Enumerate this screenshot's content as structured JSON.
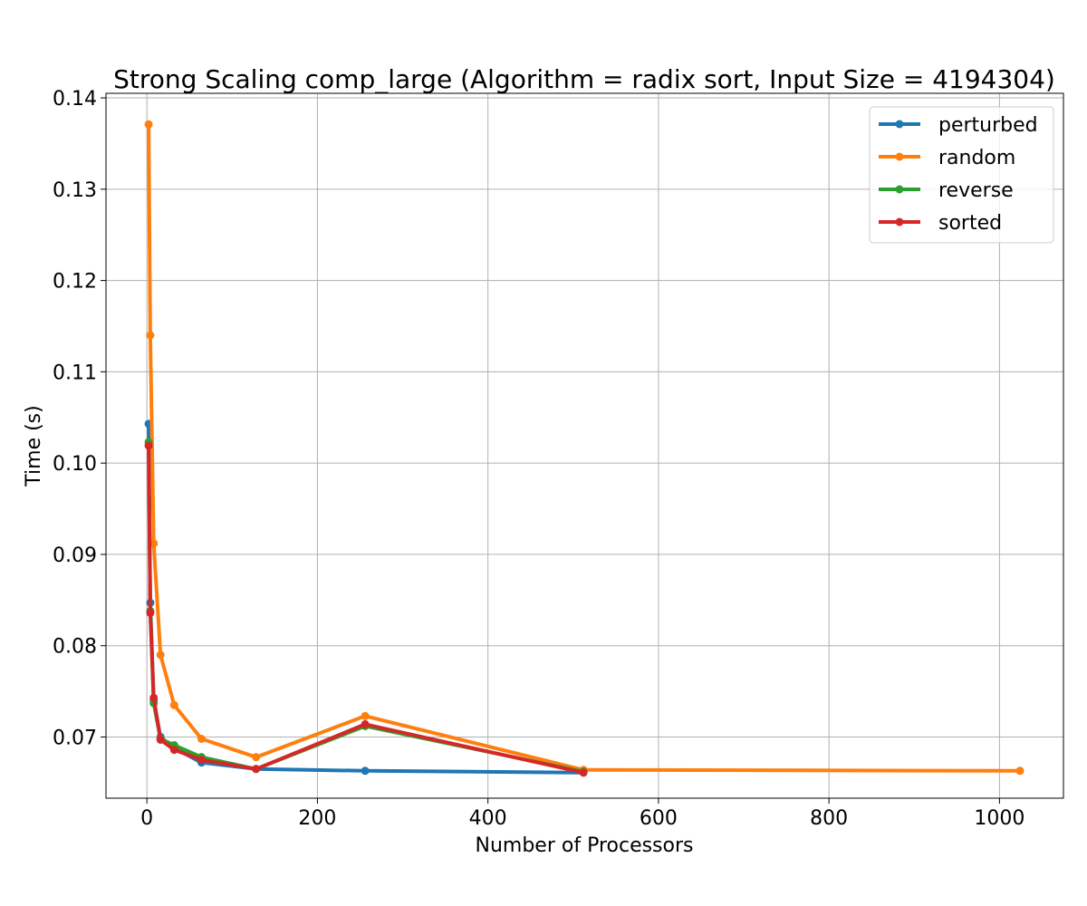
{
  "chart_data": {
    "type": "line",
    "title": "Strong Scaling comp_large (Algorithm = radix sort, Input Size = 4194304)",
    "xlabel": "Number of Processors",
    "ylabel": "Time (s)",
    "xlim": [
      -48,
      1075
    ],
    "ylim": [
      0.0633,
      0.1405
    ],
    "xticks": [
      0,
      200,
      400,
      600,
      800,
      1000
    ],
    "xtick_labels": [
      "0",
      "200",
      "400",
      "600",
      "800",
      "1000"
    ],
    "yticks": [
      0.07,
      0.08,
      0.09,
      0.1,
      0.11,
      0.12,
      0.13,
      0.14
    ],
    "ytick_labels": [
      "0.07",
      "0.08",
      "0.09",
      "0.10",
      "0.11",
      "0.12",
      "0.13",
      "0.14"
    ],
    "grid": true,
    "legend_position": "top-right",
    "series": [
      {
        "name": "perturbed",
        "color": "#1f77b4",
        "x": [
          2,
          4,
          8,
          16,
          32,
          64,
          128,
          256,
          512
        ],
        "y": [
          0.1043,
          0.0847,
          0.074,
          0.07,
          0.0688,
          0.0672,
          0.0665,
          0.0663,
          0.0661
        ]
      },
      {
        "name": "random",
        "color": "#ff7f0e",
        "x": [
          2,
          4,
          8,
          16,
          32,
          64,
          128,
          256,
          512,
          1024
        ],
        "y": [
          0.1371,
          0.114,
          0.0912,
          0.079,
          0.0735,
          0.0698,
          0.0678,
          0.0723,
          0.0664,
          0.0663
        ]
      },
      {
        "name": "reverse",
        "color": "#2ca02c",
        "x": [
          2,
          4,
          8,
          16,
          32,
          64,
          128,
          256,
          512
        ],
        "y": [
          0.1023,
          0.0838,
          0.0737,
          0.0698,
          0.0691,
          0.0678,
          0.0665,
          0.0712,
          0.0662
        ]
      },
      {
        "name": "sorted",
        "color": "#d62728",
        "x": [
          2,
          4,
          8,
          16,
          32,
          64,
          128,
          256,
          512
        ],
        "y": [
          0.1019,
          0.0836,
          0.0743,
          0.0697,
          0.0686,
          0.0675,
          0.0665,
          0.0714,
          0.0661
        ]
      }
    ]
  }
}
